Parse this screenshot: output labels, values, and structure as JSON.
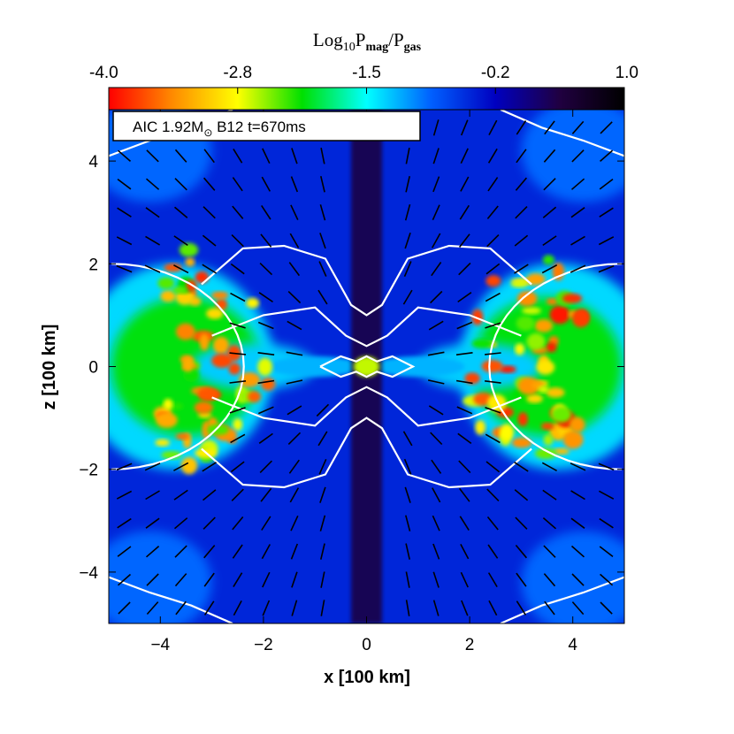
{
  "chart_data": {
    "type": "heatmap",
    "colorbar": {
      "title_prefix": "Log",
      "title_sub1": "10",
      "title_mid": "P",
      "title_sub2": "mag",
      "title_slash": "/P",
      "title_sub3": "gas",
      "range": [
        -4.0,
        1.0
      ],
      "tick_labels": [
        "-4.0",
        "-2.8",
        "-1.5",
        "-0.2",
        "1.0"
      ],
      "tick_values": [
        -4.0,
        -2.75,
        -1.5,
        -0.25,
        1.0
      ]
    },
    "annotation": {
      "prefix": "AIC 1.92M",
      "sun_sub": "⊙",
      "suffix": " B12 t=670ms"
    },
    "xlabel": "x [100 km]",
    "ylabel": "z [100 km]",
    "xlim": [
      -5,
      5
    ],
    "ylim": [
      -5,
      5
    ],
    "x_ticks": [
      -4,
      -2,
      0,
      2,
      4
    ],
    "y_ticks": [
      -4,
      -2,
      0,
      2,
      4
    ],
    "x_tick_labels": [
      "−4",
      "−2",
      "0",
      "2",
      "4"
    ],
    "y_tick_labels": [
      "−4",
      "−2",
      "0",
      "2",
      "4"
    ],
    "background_level": -0.5,
    "jet_level": 0.4,
    "torus_peak_level": -3.3,
    "colormap": [
      "#ff0000",
      "#ff8c00",
      "#ffff00",
      "#00e000",
      "#00ffff",
      "#0060ff",
      "#0000c0",
      "#200040",
      "#000000"
    ]
  }
}
